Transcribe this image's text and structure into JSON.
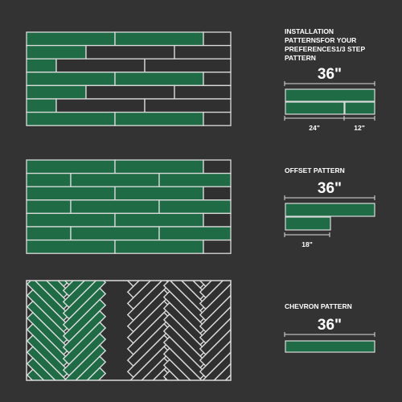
{
  "colors": {
    "background": "#333333",
    "tile_green": "#1e6b45",
    "tile_dark": "#303030",
    "grout": "#dcdcdc"
  },
  "panel_1": {
    "title_line1": "INSTALLATION",
    "title_line2": "PATTERNSFOR YOUR",
    "title_line3": "PREFERENCES1/3 STEP",
    "title_line4": "PATTERN",
    "width_label": "36\"",
    "left_segment_label": "24\"",
    "right_segment_label": "12\""
  },
  "panel_2": {
    "title": "OFFSET PATTERN",
    "width_label": "36\"",
    "offset_label": "18\""
  },
  "panel_3": {
    "title": "CHEVRON PATTERN",
    "width_label": "36\""
  }
}
